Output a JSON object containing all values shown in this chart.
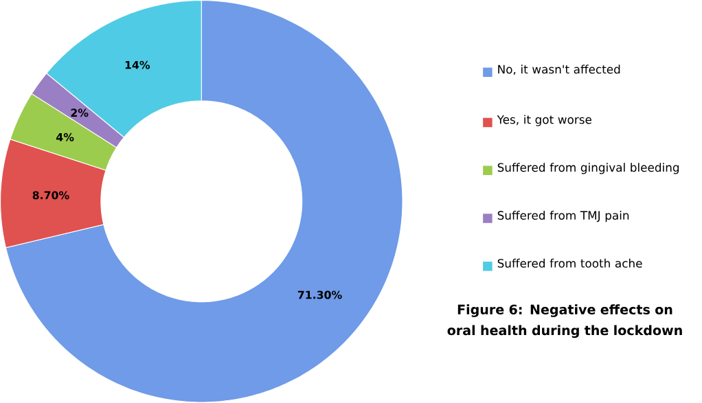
{
  "chart_data": {
    "type": "donut",
    "title": "Figure 6: Negative effects on oral health during the lockdown",
    "categories": [
      "No, it wasn't affected",
      "Yes, it got worse",
      "Suffered from gingival bleeding",
      "Suffered from TMJ pain",
      "Suffered from tooth ache"
    ],
    "values": [
      71.3,
      8.7,
      4,
      2,
      14
    ],
    "colors": [
      "#6f9be8",
      "#e0524f",
      "#9ccc4e",
      "#9b7fc4",
      "#4fcbe5"
    ],
    "value_labels": [
      "71.30%",
      "8.70%",
      "4%",
      "2%",
      "14%"
    ],
    "legend": "right"
  }
}
